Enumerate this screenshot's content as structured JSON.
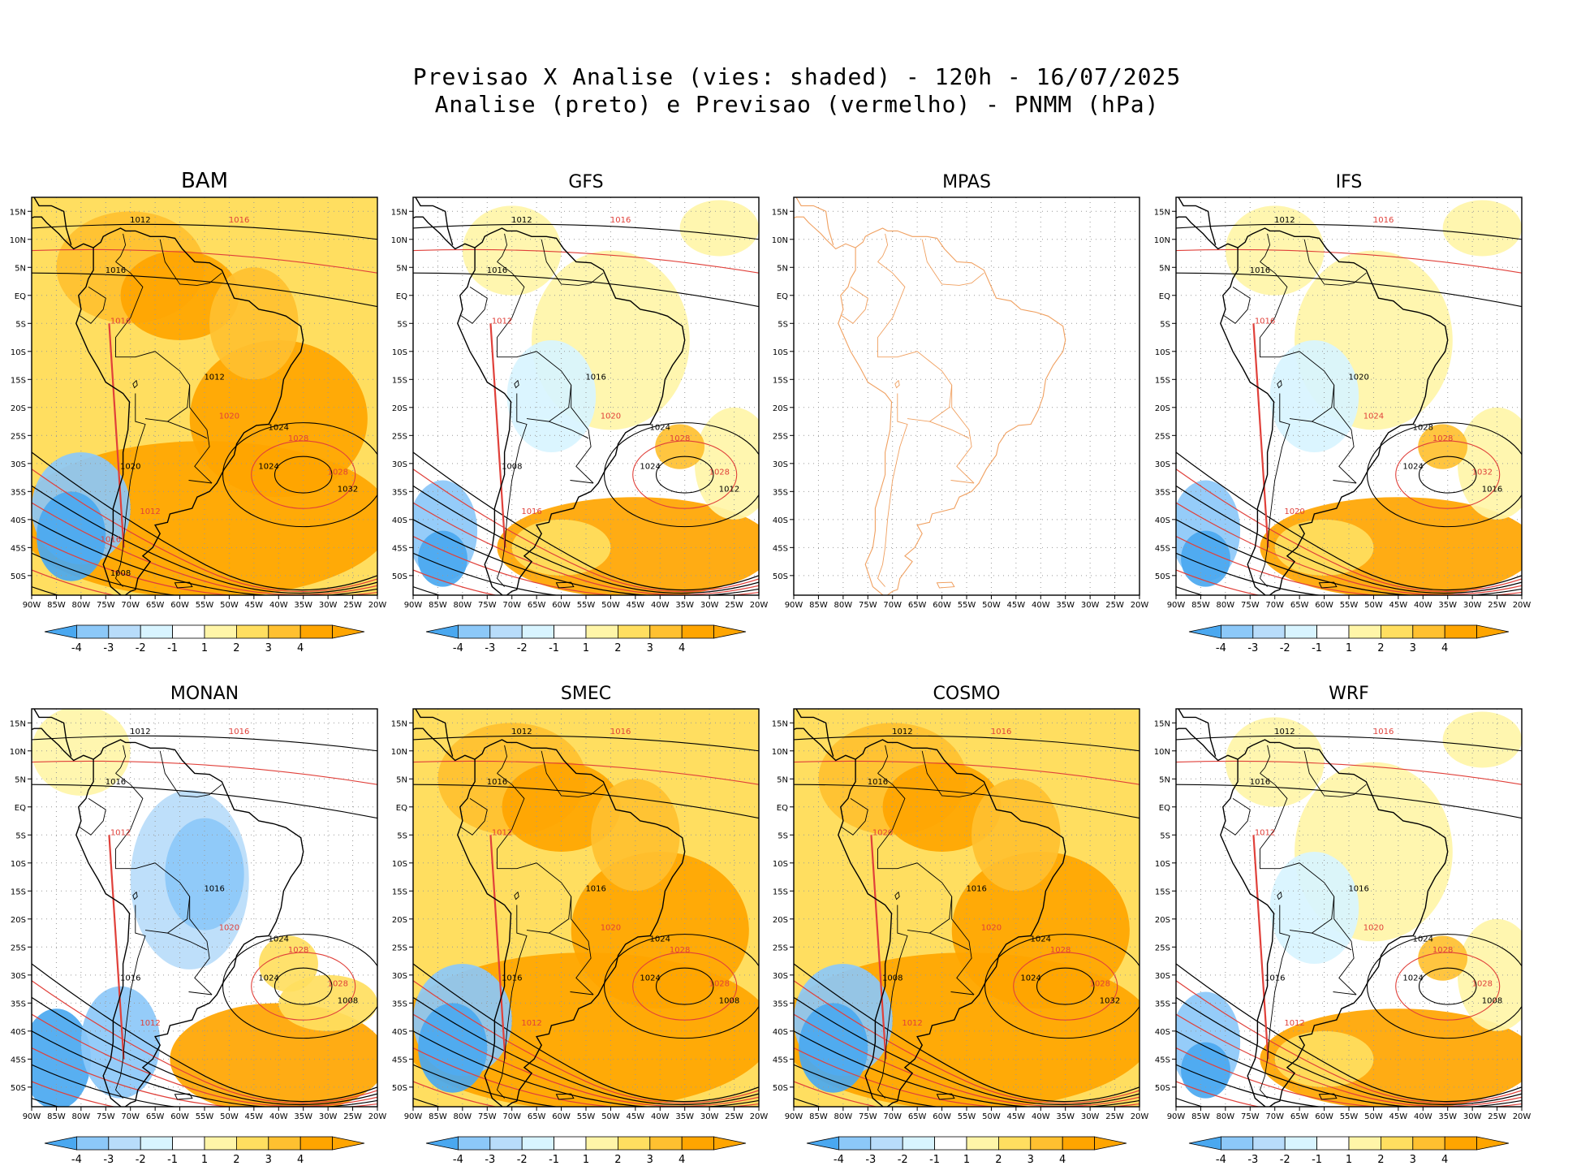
{
  "header": {
    "title_line1": "Previsao X Analise (vies: shaded) - 120h - 16/07/2025",
    "title_line2": "Analise (preto) e Previsao (vermelho) - PNMM (hPa)"
  },
  "map_axes": {
    "lat_ticks": [
      "15N",
      "10N",
      "5N",
      "EQ",
      "5S",
      "10S",
      "15S",
      "20S",
      "25S",
      "30S",
      "35S",
      "40S",
      "45S",
      "50S"
    ],
    "lon_ticks": [
      "90W",
      "85W",
      "80W",
      "75W",
      "70W",
      "65W",
      "60W",
      "55W",
      "50W",
      "45W",
      "40W",
      "35W",
      "30W",
      "25W",
      "20W"
    ]
  },
  "colorbar": {
    "labels": [
      "-4",
      "-3",
      "-2",
      "-1",
      "1",
      "2",
      "3",
      "4"
    ],
    "colors": [
      "#4aa8f0",
      "#8cc8f8",
      "#b8dcfa",
      "#d8f4ff",
      "#ffffff",
      "#fff5a8",
      "#ffde60",
      "#ffc030",
      "#ffa500"
    ]
  },
  "colors": {
    "analysis": "#000000",
    "forecast": "#e0403a",
    "coast_mpas": "#f0a060"
  },
  "panels": [
    {
      "name": "BAM",
      "bias": "warm",
      "labels": [
        "1012",
        "1016",
        "1016",
        "1016",
        "1012",
        "1020",
        "1024",
        "1028",
        "1024",
        "1028",
        "1032",
        "1012",
        "1020",
        "1016",
        "1008"
      ]
    },
    {
      "name": "GFS",
      "bias": "mixed",
      "labels": [
        "1012",
        "1016",
        "1016",
        "1012",
        "1016",
        "1020",
        "1024",
        "1028",
        "1024",
        "1028",
        "1012",
        "1016",
        "1008"
      ]
    },
    {
      "name": "MPAS",
      "bias": "none",
      "labels": []
    },
    {
      "name": "IFS",
      "bias": "mixed",
      "labels": [
        "1012",
        "1016",
        "1016",
        "1016",
        "1020",
        "1024",
        "1028",
        "1028",
        "1024",
        "1032",
        "1016",
        "1020"
      ]
    },
    {
      "name": "MONAN",
      "bias": "cold",
      "labels": [
        "1012",
        "1016",
        "1016",
        "1012",
        "1016",
        "1020",
        "1024",
        "1028",
        "1024",
        "1028",
        "1008",
        "1012",
        "1016"
      ]
    },
    {
      "name": "SMEC",
      "bias": "warm",
      "labels": [
        "1012",
        "1016",
        "1016",
        "1012",
        "1016",
        "1020",
        "1024",
        "1028",
        "1024",
        "1028",
        "1008",
        "1012",
        "1016"
      ]
    },
    {
      "name": "COSMO",
      "bias": "warm",
      "labels": [
        "1012",
        "1016",
        "1016",
        "1020",
        "1016",
        "1020",
        "1024",
        "1028",
        "1024",
        "1028",
        "1032",
        "1012",
        "1008"
      ]
    },
    {
      "name": "WRF",
      "bias": "mixed",
      "labels": [
        "1012",
        "1016",
        "1016",
        "1012",
        "1016",
        "1020",
        "1024",
        "1028",
        "1024",
        "1028",
        "1008",
        "1012",
        "1016"
      ]
    }
  ]
}
